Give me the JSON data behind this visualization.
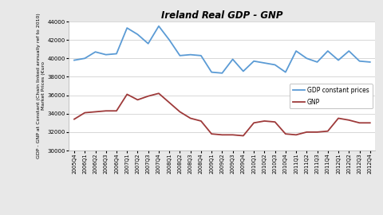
{
  "title": "Ireland Real GDP - GNP",
  "ylabel_line1": "GDP - GNP at Constant (Chain linked annually ref to 2010)",
  "ylabel_line2": "Market Prices (€uro",
  "ylim": [
    30000,
    44000
  ],
  "yticks": [
    30000,
    32000,
    34000,
    36000,
    38000,
    40000,
    42000,
    44000
  ],
  "labels": [
    "2005Q4",
    "2006Q1",
    "2006Q2",
    "2006Q3",
    "2006Q4",
    "2007Q1",
    "2007Q2",
    "2007Q3",
    "2007Q4",
    "2008Q1",
    "2008Q2",
    "2008Q3",
    "2008Q4",
    "2009Q1",
    "2009Q2",
    "2009Q3",
    "2009Q4",
    "2010Q1",
    "2010Q2",
    "2010Q3",
    "2010Q4",
    "2011Q1",
    "2011Q2",
    "2011Q3",
    "2011Q4",
    "2012Q1",
    "2012Q2",
    "2012Q3",
    "2012Q4"
  ],
  "gdp": [
    39800,
    40000,
    40700,
    40400,
    40500,
    43300,
    42600,
    41600,
    43500,
    42000,
    40300,
    40400,
    40300,
    38500,
    38400,
    39900,
    38600,
    39700,
    39500,
    39300,
    38500,
    40800,
    40000,
    39600,
    40800,
    39800,
    40800,
    39700,
    39600
  ],
  "gnp": [
    33400,
    34100,
    34200,
    34300,
    34300,
    36100,
    35500,
    35900,
    36200,
    35200,
    34200,
    33500,
    33200,
    31800,
    31700,
    31700,
    31600,
    33000,
    33200,
    33100,
    31800,
    31700,
    32000,
    32000,
    32100,
    33500,
    33300,
    33000,
    33000
  ],
  "gdp_color": "#5B9BD5",
  "gnp_color": "#9E3A3A",
  "bg_color": "#E8E8E8",
  "plot_bg": "#FFFFFF",
  "title_fontsize": 8.5,
  "tick_fontsize": 5.0,
  "ylabel_fontsize": 4.5,
  "legend_fontsize": 5.5,
  "legend_labels": [
    "GDP constant prices",
    "GNP"
  ]
}
